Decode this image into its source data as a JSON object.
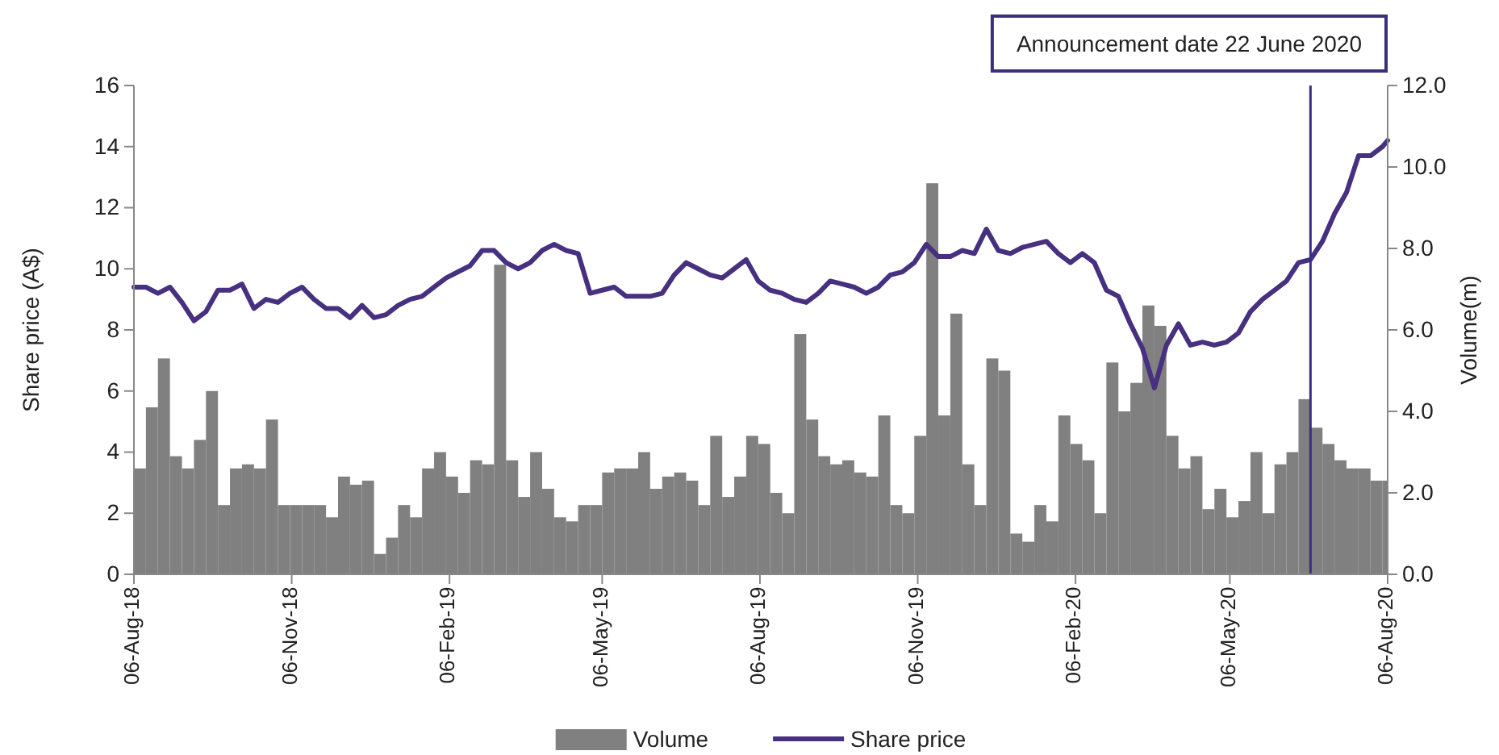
{
  "chart_data": {
    "type": "bar",
    "x": [
      "2018-08-06",
      "2018-08-13",
      "2018-08-20",
      "2018-08-27",
      "2018-09-03",
      "2018-09-10",
      "2018-09-17",
      "2018-09-24",
      "2018-10-01",
      "2018-10-08",
      "2018-10-15",
      "2018-10-22",
      "2018-10-29",
      "2018-11-05",
      "2018-11-12",
      "2018-11-19",
      "2018-11-26",
      "2018-12-03",
      "2018-12-10",
      "2018-12-17",
      "2018-12-24",
      "2018-12-31",
      "2019-01-07",
      "2019-01-14",
      "2019-01-21",
      "2019-01-28",
      "2019-02-04",
      "2019-02-11",
      "2019-02-18",
      "2019-02-25",
      "2019-03-04",
      "2019-03-11",
      "2019-03-18",
      "2019-03-25",
      "2019-04-01",
      "2019-04-08",
      "2019-04-15",
      "2019-04-22",
      "2019-04-29",
      "2019-05-06",
      "2019-05-13",
      "2019-05-20",
      "2019-05-27",
      "2019-06-03",
      "2019-06-10",
      "2019-06-17",
      "2019-06-24",
      "2019-07-01",
      "2019-07-08",
      "2019-07-15",
      "2019-07-22",
      "2019-07-29",
      "2019-08-05",
      "2019-08-12",
      "2019-08-19",
      "2019-08-26",
      "2019-09-02",
      "2019-09-09",
      "2019-09-16",
      "2019-09-23",
      "2019-09-30",
      "2019-10-07",
      "2019-10-14",
      "2019-10-21",
      "2019-10-28",
      "2019-11-04",
      "2019-11-11",
      "2019-11-18",
      "2019-11-25",
      "2019-12-02",
      "2019-12-09",
      "2019-12-16",
      "2019-12-23",
      "2019-12-30",
      "2020-01-06",
      "2020-01-13",
      "2020-01-20",
      "2020-01-27",
      "2020-02-03",
      "2020-02-10",
      "2020-02-17",
      "2020-02-24",
      "2020-03-02",
      "2020-03-09",
      "2020-03-16",
      "2020-03-23",
      "2020-03-30",
      "2020-04-06",
      "2020-04-13",
      "2020-04-20",
      "2020-04-27",
      "2020-05-04",
      "2020-05-11",
      "2020-05-18",
      "2020-05-25",
      "2020-06-01",
      "2020-06-08",
      "2020-06-15",
      "2020-06-22",
      "2020-06-29",
      "2020-07-06",
      "2020-07-13",
      "2020-07-20",
      "2020-07-27",
      "2020-08-03"
    ],
    "series": [
      {
        "name": "Volume",
        "axis": "y2",
        "color": "#808080",
        "values": [
          2.6,
          4.1,
          5.3,
          2.9,
          2.6,
          3.3,
          4.5,
          1.7,
          2.6,
          2.7,
          2.6,
          3.8,
          1.7,
          1.7,
          1.7,
          1.7,
          1.4,
          2.4,
          2.2,
          2.3,
          0.5,
          0.9,
          1.7,
          1.4,
          2.6,
          3.0,
          2.4,
          2.0,
          2.8,
          2.7,
          7.6,
          2.8,
          1.9,
          3.0,
          2.1,
          1.4,
          1.3,
          1.7,
          1.7,
          2.5,
          2.6,
          2.6,
          3.0,
          2.1,
          2.4,
          2.5,
          2.3,
          1.7,
          3.4,
          1.9,
          2.4,
          3.4,
          3.2,
          2.0,
          1.5,
          5.9,
          3.8,
          2.9,
          2.7,
          2.8,
          2.5,
          2.4,
          3.9,
          1.7,
          1.5,
          3.4,
          9.6,
          3.9,
          6.4,
          2.7,
          1.7,
          5.3,
          5.0,
          1.0,
          0.8,
          1.7,
          1.3,
          3.9,
          3.2,
          2.8,
          1.5,
          5.2,
          4.0,
          4.7,
          6.6,
          6.1,
          3.4,
          2.6,
          2.9,
          1.6,
          2.1,
          1.4,
          1.8,
          3.0,
          1.5,
          2.7,
          3.0,
          4.3,
          3.6,
          3.2,
          2.8,
          2.6,
          2.6,
          2.3,
          2.3
        ]
      },
      {
        "name": "Share price",
        "type": "line",
        "color": "#47307f",
        "x": [
          "2018-08-06",
          "2018-08-13",
          "2018-08-20",
          "2018-08-27",
          "2018-09-03",
          "2018-09-10",
          "2018-09-17",
          "2018-09-24",
          "2018-10-01",
          "2018-10-08",
          "2018-10-15",
          "2018-10-22",
          "2018-10-29",
          "2018-11-05",
          "2018-11-12",
          "2018-11-19",
          "2018-11-26",
          "2018-12-03",
          "2018-12-10",
          "2018-12-17",
          "2018-12-24",
          "2018-12-31",
          "2019-01-07",
          "2019-01-14",
          "2019-01-21",
          "2019-01-28",
          "2019-02-04",
          "2019-02-11",
          "2019-02-18",
          "2019-02-25",
          "2019-03-04",
          "2019-03-11",
          "2019-03-18",
          "2019-03-25",
          "2019-04-01",
          "2019-04-08",
          "2019-04-15",
          "2019-04-22",
          "2019-04-29",
          "2019-05-06",
          "2019-05-13",
          "2019-05-20",
          "2019-05-27",
          "2019-06-03",
          "2019-06-10",
          "2019-06-17",
          "2019-06-24",
          "2019-07-01",
          "2019-07-08",
          "2019-07-15",
          "2019-07-22",
          "2019-07-29",
          "2019-08-05",
          "2019-08-12",
          "2019-08-19",
          "2019-08-26",
          "2019-09-02",
          "2019-09-09",
          "2019-09-16",
          "2019-09-23",
          "2019-09-30",
          "2019-10-07",
          "2019-10-14",
          "2019-10-21",
          "2019-10-28",
          "2019-11-04",
          "2019-11-11",
          "2019-11-18",
          "2019-11-25",
          "2019-12-02",
          "2019-12-09",
          "2019-12-16",
          "2019-12-23",
          "2019-12-30",
          "2020-01-06",
          "2020-01-13",
          "2020-01-20",
          "2020-01-27",
          "2020-02-03",
          "2020-02-10",
          "2020-02-17",
          "2020-02-24",
          "2020-03-02",
          "2020-03-09",
          "2020-03-16",
          "2020-03-23",
          "2020-03-30",
          "2020-04-06",
          "2020-04-13",
          "2020-04-20",
          "2020-04-27",
          "2020-05-04",
          "2020-05-11",
          "2020-05-18",
          "2020-05-25",
          "2020-06-01",
          "2020-06-08",
          "2020-06-15",
          "2020-06-22",
          "2020-06-29",
          "2020-07-06",
          "2020-07-13",
          "2020-07-20",
          "2020-07-27",
          "2020-08-03",
          "2020-08-06"
        ],
        "values": [
          9.4,
          9.4,
          9.2,
          9.4,
          8.9,
          8.3,
          8.6,
          9.3,
          9.3,
          9.5,
          8.7,
          9.0,
          8.9,
          9.2,
          9.4,
          9.0,
          8.7,
          8.7,
          8.4,
          8.8,
          8.4,
          8.5,
          8.8,
          9.0,
          9.1,
          9.4,
          9.7,
          9.9,
          10.1,
          10.6,
          10.6,
          10.2,
          10.0,
          10.2,
          10.6,
          10.8,
          10.6,
          10.5,
          9.2,
          9.3,
          9.4,
          9.1,
          9.1,
          9.1,
          9.2,
          9.8,
          10.2,
          10.0,
          9.8,
          9.7,
          10.0,
          10.3,
          9.6,
          9.3,
          9.2,
          9.0,
          8.9,
          9.2,
          9.6,
          9.5,
          9.4,
          9.2,
          9.4,
          9.8,
          9.9,
          10.2,
          10.8,
          10.4,
          10.4,
          10.6,
          10.5,
          11.3,
          10.6,
          10.5,
          10.7,
          10.8,
          10.9,
          10.5,
          10.2,
          10.5,
          10.2,
          9.3,
          9.1,
          8.2,
          7.4,
          6.1,
          7.5,
          8.2,
          7.5,
          7.6,
          7.5,
          7.6,
          7.9,
          8.6,
          9.0,
          9.3,
          9.6,
          10.2,
          10.3,
          10.9,
          11.8,
          12.5,
          13.7,
          13.7,
          14.0,
          14.2
        ]
      }
    ],
    "xlim": [
      "2018-08-06",
      "2020-08-06"
    ],
    "xticks": [
      {
        "value": "2018-08-06",
        "label": "06-Aug-18"
      },
      {
        "value": "2018-11-06",
        "label": "06-Nov-18"
      },
      {
        "value": "2019-02-06",
        "label": "06-Feb-19"
      },
      {
        "value": "2019-05-06",
        "label": "06-May-19"
      },
      {
        "value": "2019-08-06",
        "label": "06-Aug-19"
      },
      {
        "value": "2019-11-06",
        "label": "06-Nov-19"
      },
      {
        "value": "2020-02-06",
        "label": "06-Feb-20"
      },
      {
        "value": "2020-05-06",
        "label": "06-May-20"
      },
      {
        "value": "2020-08-06",
        "label": "06-Aug-20"
      }
    ],
    "ylim": [
      0,
      16
    ],
    "yticks": [
      0,
      2,
      4,
      6,
      8,
      10,
      12,
      14,
      16
    ],
    "y2lim": [
      0,
      12
    ],
    "y2ticks": [
      {
        "value": 0,
        "label": "0.0"
      },
      {
        "value": 2,
        "label": "2.0"
      },
      {
        "value": 4,
        "label": "4.0"
      },
      {
        "value": 6,
        "label": "6.0"
      },
      {
        "value": 8,
        "label": "8.0"
      },
      {
        "value": 10,
        "label": "10.0"
      },
      {
        "value": 12,
        "label": "12.0"
      }
    ],
    "ylabel": "Share price (A$)",
    "y2label": "Volume(m)",
    "ref_lines": [
      {
        "axis": "x",
        "value": "2020-06-22",
        "label": "Announcement date 22 June 2020",
        "color": "#3b2f7a"
      }
    ],
    "legend": "bottom",
    "grid": false
  }
}
